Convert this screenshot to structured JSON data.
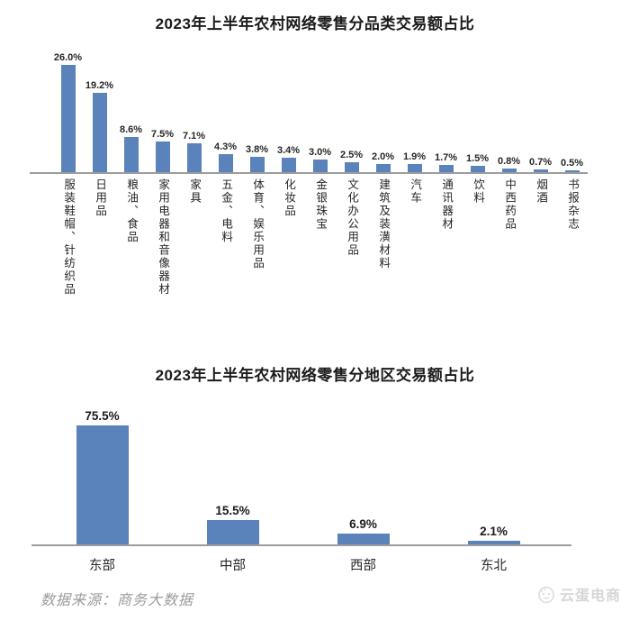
{
  "page": {
    "source_note": "数据来源：商务大数据",
    "watermark_text": "云蛋电商"
  },
  "chart_data": [
    {
      "type": "bar",
      "title": "2023年上半年农村网络零售分品类交易额占比",
      "categories": [
        "服装鞋帽、针纺织品",
        "日用品",
        "粮油、食品",
        "家用电器和音像器材",
        "家具",
        "五金、电料",
        "体育、娱乐用品",
        "化妆品",
        "金银珠宝",
        "文化办公用品",
        "建筑及装潢材料",
        "汽车",
        "通讯器材",
        "饮料",
        "中西药品",
        "烟酒",
        "书报杂志"
      ],
      "values": [
        26.0,
        19.2,
        8.6,
        7.5,
        7.1,
        4.3,
        3.8,
        3.4,
        3.0,
        2.5,
        2.0,
        1.9,
        1.7,
        1.5,
        0.8,
        0.7,
        0.5
      ],
      "value_labels": [
        "26.0%",
        "19.2%",
        "8.6%",
        "7.5%",
        "7.1%",
        "4.3%",
        "3.8%",
        "3.4%",
        "3.0%",
        "2.5%",
        "2.0%",
        "1.9%",
        "1.7%",
        "1.5%",
        "0.8%",
        "0.7%",
        "0.5%"
      ],
      "unit": "%",
      "ylim": [
        0,
        28
      ],
      "grid": false,
      "legend": "none",
      "bar_color": "#5b83bb",
      "axis_color": "#9d9d9d",
      "category_orientation": "vertical"
    },
    {
      "type": "bar",
      "title": "2023年上半年农村网络零售分地区交易额占比",
      "categories": [
        "东部",
        "中部",
        "西部",
        "东北"
      ],
      "values": [
        75.5,
        15.5,
        6.9,
        2.1
      ],
      "value_labels": [
        "75.5%",
        "15.5%",
        "6.9%",
        "2.1%"
      ],
      "unit": "%",
      "ylim": [
        0,
        80
      ],
      "grid": false,
      "legend": "none",
      "bar_color": "#5b83bb",
      "axis_color": "#9d9d9d",
      "category_orientation": "horizontal"
    }
  ]
}
